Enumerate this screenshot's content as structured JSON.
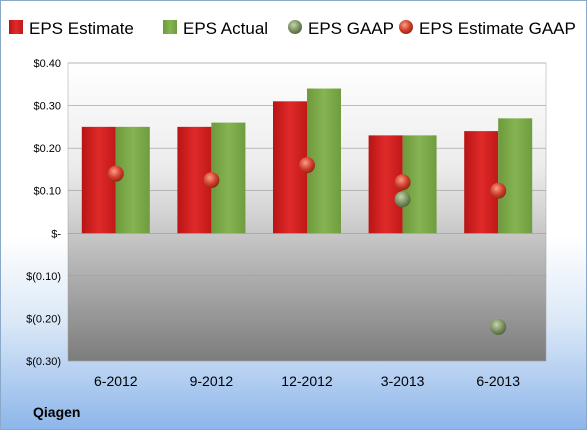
{
  "company": "Qiagen",
  "chart_data": {
    "type": "bar",
    "categories": [
      "6-2012",
      "9-2012",
      "12-2012",
      "3-2013",
      "6-2013"
    ],
    "series": [
      {
        "name": "EPS Estimate",
        "kind": "bar",
        "color": "#d42020",
        "values": [
          0.25,
          0.25,
          0.31,
          0.23,
          0.24
        ]
      },
      {
        "name": "EPS Actual",
        "kind": "bar",
        "color": "#7aa845",
        "values": [
          0.25,
          0.26,
          0.34,
          0.23,
          0.27
        ]
      },
      {
        "name": "EPS GAAP",
        "kind": "marker",
        "color": "#7d9462",
        "values": [
          null,
          null,
          null,
          0.08,
          -0.22
        ]
      },
      {
        "name": "EPS Estimate GAAP",
        "kind": "marker",
        "color": "#dd4a3a",
        "values": [
          0.14,
          0.125,
          0.16,
          0.12,
          0.1
        ]
      }
    ],
    "ylim": [
      -0.3,
      0.4
    ],
    "yticks": [
      {
        "value": 0.4,
        "label": "$0.40"
      },
      {
        "value": 0.3,
        "label": "$0.30"
      },
      {
        "value": 0.2,
        "label": "$0.20"
      },
      {
        "value": 0.1,
        "label": "$0.10"
      },
      {
        "value": 0.0,
        "label": "$-"
      },
      {
        "value": -0.1,
        "label": "$(0.10)"
      },
      {
        "value": -0.2,
        "label": "$(0.20)"
      },
      {
        "value": -0.3,
        "label": "$(0.30)"
      }
    ],
    "legend_position": "top",
    "grid": true
  }
}
